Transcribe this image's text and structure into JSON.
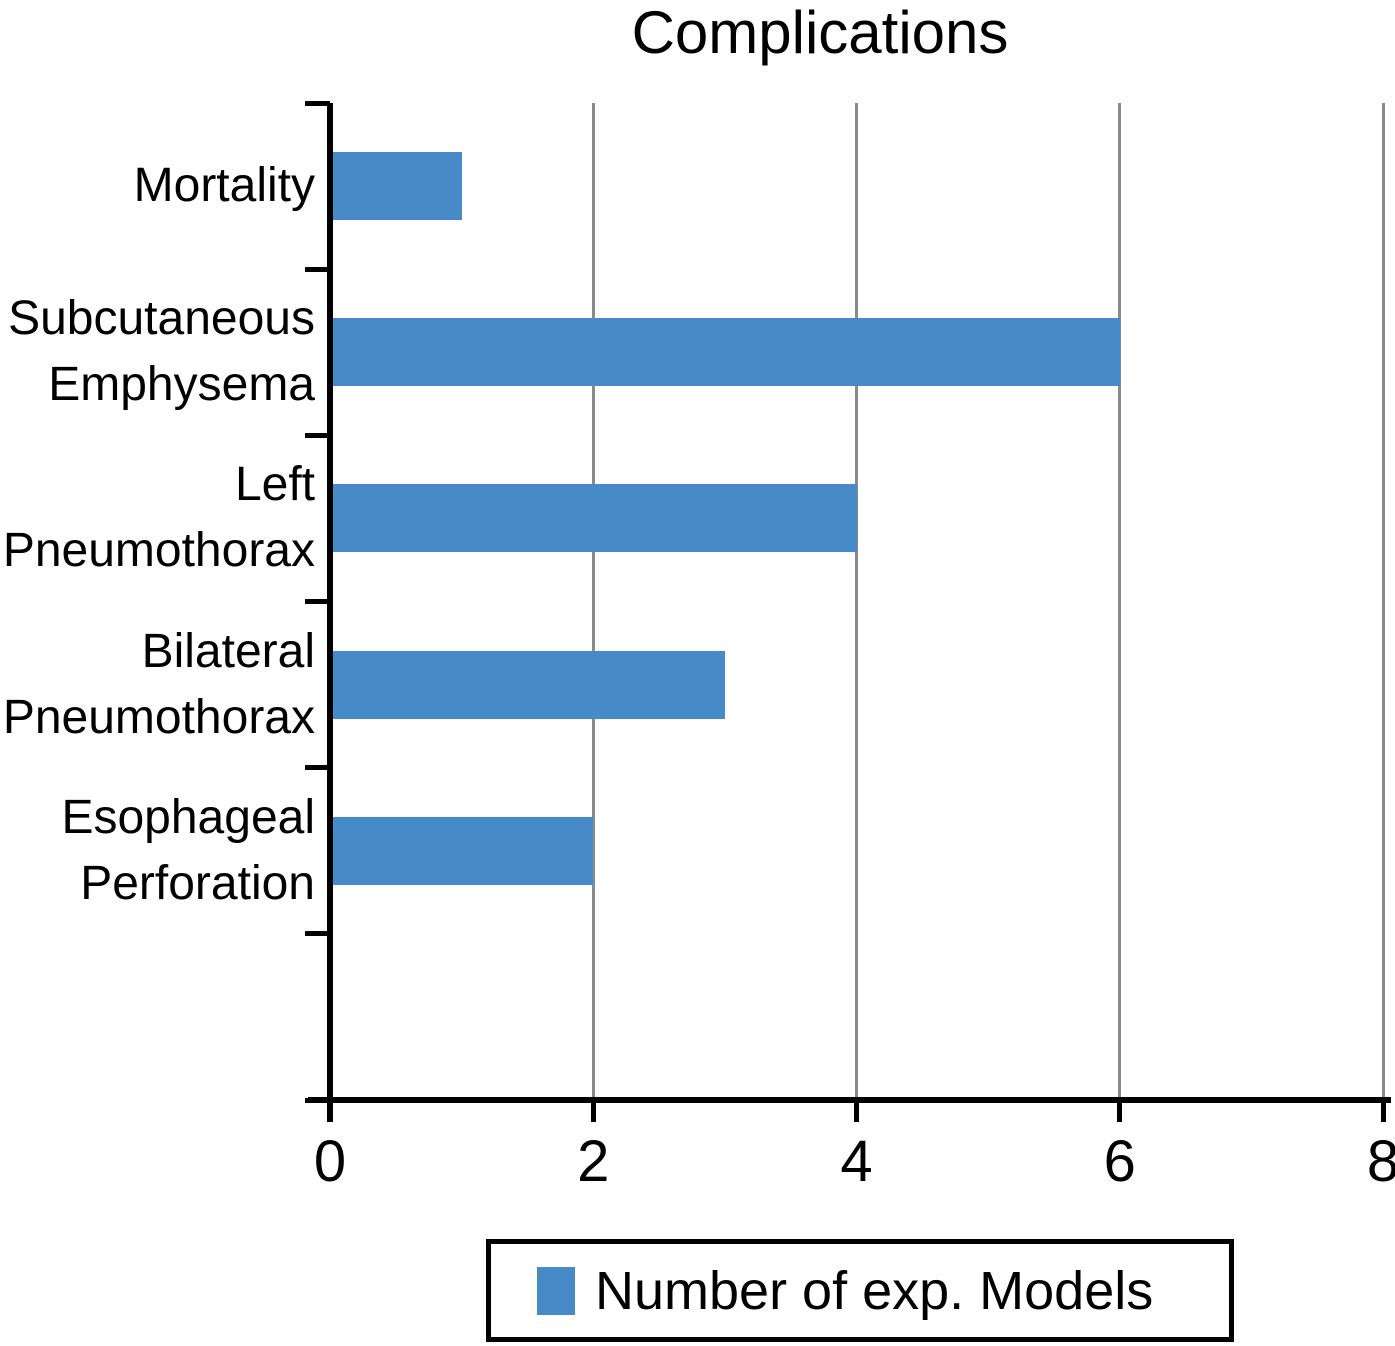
{
  "chart_data": {
    "type": "bar",
    "orientation": "horizontal",
    "title": "Complications",
    "categories": [
      "Mortality",
      "Subcutaneous Emphysema",
      "Left Pneumothorax",
      "Bilateral Pneumothorax",
      "Esophageal Perforation"
    ],
    "category_label_lines": [
      [
        "Mortality"
      ],
      [
        "Subcutaneous",
        "Emphysema"
      ],
      [
        "Left",
        "Pneumothorax"
      ],
      [
        "Bilateral",
        "Pneumothorax"
      ],
      [
        "Esophageal",
        "Perforation"
      ]
    ],
    "series": [
      {
        "name": "Number of exp. Models",
        "values": [
          1,
          6,
          4,
          3,
          2
        ]
      }
    ],
    "xlabel": "",
    "ylabel": "",
    "xlim": [
      0,
      8
    ],
    "x_ticks": [
      0,
      2,
      4,
      6,
      8
    ],
    "num_category_bands": 6,
    "grid": "vertical gridlines at x ticks",
    "legend_position": "bottom center",
    "colors": {
      "bar": "#468AC8",
      "gridline": "#8A8A8A",
      "axis": "#000000",
      "text": "#000000",
      "background": "#FFFFFF"
    }
  },
  "legend": {
    "label": "Number of exp. Models"
  }
}
